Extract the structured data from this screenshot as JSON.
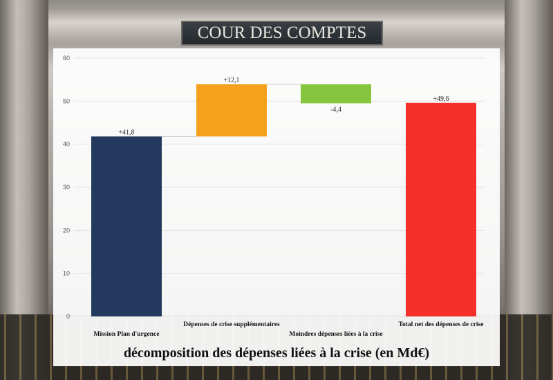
{
  "background": {
    "sign_text": "COUR DES COMPTES"
  },
  "chart_data": {
    "type": "bar",
    "subtype": "waterfall",
    "title": "décomposition des dépenses liées à la crise (en Md€)",
    "xlabel": "",
    "ylabel": "",
    "ylim": [
      0,
      60
    ],
    "yticks": [
      "0",
      "10",
      "20",
      "30",
      "40",
      "50",
      "60"
    ],
    "grid": true,
    "categories": [
      "Mission Plan d'urgence",
      "Dépenses de crise supplémentaires",
      "Moindres dépenses liées à la crise",
      "Total net des dépenses de crise"
    ],
    "bars": [
      {
        "start": 0,
        "end": 41.8,
        "label": "+41,8",
        "color": "#233a5e"
      },
      {
        "start": 41.8,
        "end": 53.9,
        "label": "+12,1",
        "color": "#f5a11e"
      },
      {
        "start": 53.9,
        "end": 49.5,
        "label": "-4,4",
        "color": "#86c63f"
      },
      {
        "start": 0,
        "end": 49.6,
        "label": "+49,6",
        "color": "#f5302a"
      }
    ]
  }
}
